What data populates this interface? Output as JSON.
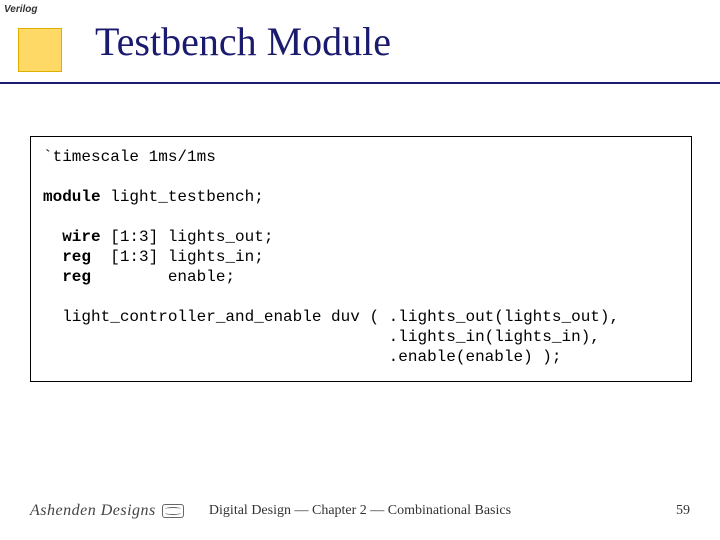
{
  "tag": "Verilog",
  "title": "Testbench Module",
  "code": {
    "l1": "`timescale 1ms/1ms",
    "l2a": "module",
    "l2b": " light_testbench;",
    "l3a": "  wire",
    "l3b": " [1:3] lights_out;",
    "l4a": "  reg",
    "l4b": "  [1:3] lights_in;",
    "l5a": "  reg",
    "l5b": "        enable;",
    "l6": "  light_controller_and_enable duv ( .lights_out(lights_out),",
    "l7": "                                    .lights_in(lights_in),",
    "l8": "                                    .enable(enable) );"
  },
  "footer": {
    "logo": "Ashenden Designs",
    "center": "Digital Design — Chapter 2 — Combinational Basics",
    "page": "59"
  },
  "colors": {
    "title": "#1a1a6e",
    "accent_box": "#ffd966"
  }
}
